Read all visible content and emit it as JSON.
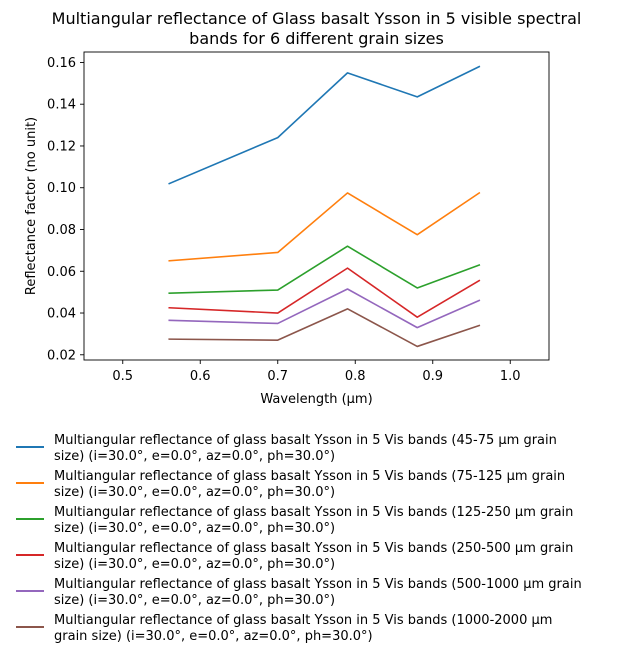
{
  "chart_data": {
    "type": "line",
    "title_lines": [
      "Multiangular reflectance of Glass basalt Ysson in 5 visible spectral",
      "bands for 6 different grain sizes"
    ],
    "xlabel": "Wavelength (μm)",
    "ylabel": "Reflectance factor (no unit)",
    "xlim": [
      0.45,
      1.05
    ],
    "ylim": [
      0.0175,
      0.165
    ],
    "xticks": [
      0.5,
      0.6,
      0.7,
      0.8,
      0.9,
      1.0
    ],
    "xtick_labels": [
      "0.5",
      "0.6",
      "0.7",
      "0.8",
      "0.9",
      "1.0"
    ],
    "yticks": [
      0.02,
      0.04,
      0.06,
      0.08,
      0.1,
      0.12,
      0.14,
      0.16
    ],
    "ytick_labels": [
      "0.02",
      "0.04",
      "0.06",
      "0.08",
      "0.10",
      "0.12",
      "0.14",
      "0.16"
    ],
    "grid": false,
    "legend_placement": "below",
    "x": [
      0.56,
      0.7,
      0.79,
      0.88,
      0.96
    ],
    "series": [
      {
        "name_lines": [
          "Multiangular reflectance of glass basalt Ysson in 5 Vis bands (45-75 µm grain",
          "size) (i=30.0°, e=0.0°, az=0.0°, ph=30.0°)"
        ],
        "color": "#1f77b4",
        "values": [
          0.102,
          0.124,
          0.155,
          0.1435,
          0.158
        ]
      },
      {
        "name_lines": [
          "Multiangular reflectance of glass basalt Ysson in 5 Vis bands (75-125 µm grain",
          "size) (i=30.0°, e=0.0°, az=0.0°, ph=30.0°)"
        ],
        "color": "#ff7f0e",
        "values": [
          0.065,
          0.069,
          0.0975,
          0.0775,
          0.0975
        ]
      },
      {
        "name_lines": [
          "Multiangular reflectance of glass basalt Ysson in 5 Vis bands (125-250 µm grain",
          "size) (i=30.0°, e=0.0°, az=0.0°, ph=30.0°)"
        ],
        "color": "#2ca02c",
        "values": [
          0.0495,
          0.051,
          0.072,
          0.052,
          0.063
        ]
      },
      {
        "name_lines": [
          "Multiangular reflectance of glass basalt Ysson in 5 Vis bands (250-500 µm grain",
          "size) (i=30.0°, e=0.0°, az=0.0°, ph=30.0°)"
        ],
        "color": "#d62728",
        "values": [
          0.0425,
          0.04,
          0.0615,
          0.038,
          0.0555
        ]
      },
      {
        "name_lines": [
          "Multiangular reflectance of glass basalt Ysson in 5 Vis bands (500-1000 µm grain",
          "size) (i=30.0°, e=0.0°, az=0.0°, ph=30.0°)"
        ],
        "color": "#9467bd",
        "values": [
          0.0365,
          0.035,
          0.0515,
          0.033,
          0.046
        ]
      },
      {
        "name_lines": [
          "Multiangular reflectance of glass basalt Ysson in 5 Vis bands (1000-2000 µm",
          "grain size) (i=30.0°, e=0.0°, az=0.0°, ph=30.0°)"
        ],
        "color": "#8c564b",
        "values": [
          0.0275,
          0.027,
          0.042,
          0.024,
          0.034
        ]
      }
    ]
  }
}
